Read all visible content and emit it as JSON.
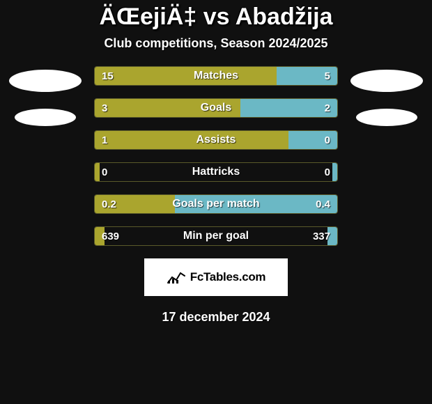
{
  "title": "ÄŒejiÄ‡ vs Abadžija",
  "subtitle": "Club competitions, Season 2024/2025",
  "date": "17 december 2024",
  "colors": {
    "background": "#101010",
    "left_fill": "#aaa52e",
    "right_fill": "#6bb8c5",
    "bar_border": "#5a5a2a",
    "text": "#ffffff",
    "badge_bg": "#ffffff",
    "badge_text": "#000000"
  },
  "badge": {
    "text": "FcTables.com"
  },
  "stats": [
    {
      "label": "Matches",
      "left_val": "15",
      "right_val": "5",
      "left_pct": 75,
      "right_pct": 25
    },
    {
      "label": "Goals",
      "left_val": "3",
      "right_val": "2",
      "left_pct": 60,
      "right_pct": 40
    },
    {
      "label": "Assists",
      "left_val": "1",
      "right_val": "0",
      "left_pct": 80,
      "right_pct": 20
    },
    {
      "label": "Hattricks",
      "left_val": "0",
      "right_val": "0",
      "left_pct": 2,
      "right_pct": 2
    },
    {
      "label": "Goals per match",
      "left_val": "0.2",
      "right_val": "0.4",
      "left_pct": 33,
      "right_pct": 67
    },
    {
      "label": "Min per goal",
      "left_val": "639",
      "right_val": "337",
      "left_pct": 4,
      "right_pct": 4
    }
  ]
}
